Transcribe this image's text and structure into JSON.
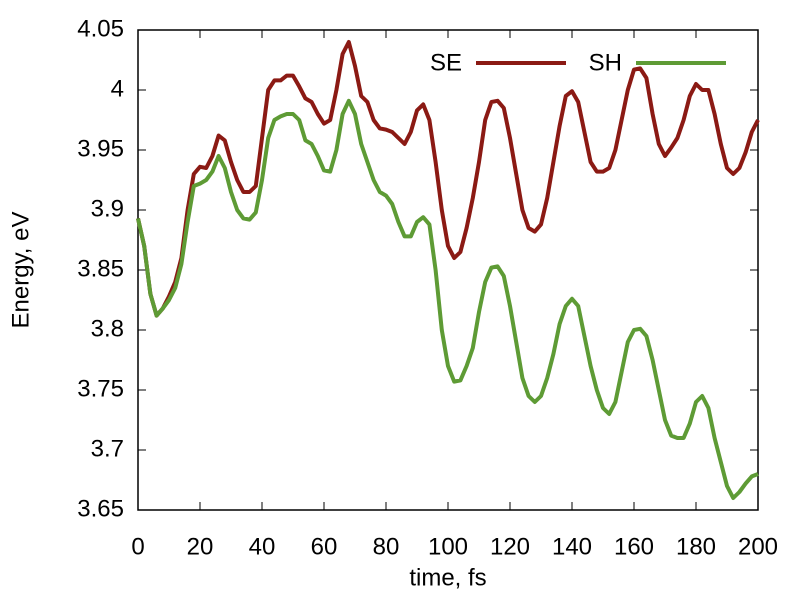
{
  "chart_data": {
    "type": "line",
    "xlabel": "time, fs",
    "ylabel": "Energy, eV",
    "x": [
      0,
      2,
      4,
      6,
      8,
      10,
      12,
      14,
      16,
      18,
      20,
      22,
      24,
      26,
      28,
      30,
      32,
      34,
      36,
      38,
      40,
      42,
      44,
      46,
      48,
      50,
      52,
      54,
      56,
      58,
      60,
      62,
      64,
      66,
      68,
      70,
      72,
      74,
      76,
      78,
      80,
      82,
      84,
      86,
      88,
      90,
      92,
      94,
      96,
      98,
      100,
      102,
      104,
      106,
      108,
      110,
      112,
      114,
      116,
      118,
      120,
      122,
      124,
      126,
      128,
      130,
      132,
      134,
      136,
      138,
      140,
      142,
      144,
      146,
      148,
      150,
      152,
      154,
      156,
      158,
      160,
      162,
      164,
      166,
      168,
      170,
      172,
      174,
      176,
      178,
      180,
      182,
      184,
      186,
      188,
      190,
      192,
      194,
      196,
      198,
      200
    ],
    "series": [
      {
        "name": "SE",
        "color": "#8b1a14",
        "values": [
          3.893,
          3.87,
          3.83,
          3.812,
          3.818,
          3.828,
          3.84,
          3.86,
          3.9,
          3.93,
          3.936,
          3.935,
          3.945,
          3.962,
          3.958,
          3.94,
          3.925,
          3.915,
          3.915,
          3.92,
          3.96,
          4.0,
          4.008,
          4.008,
          4.012,
          4.012,
          4.003,
          3.993,
          3.99,
          3.98,
          3.972,
          3.975,
          4.0,
          4.03,
          4.04,
          4.02,
          3.995,
          3.99,
          3.975,
          3.968,
          3.967,
          3.965,
          3.96,
          3.955,
          3.965,
          3.983,
          3.988,
          3.975,
          3.94,
          3.9,
          3.87,
          3.86,
          3.865,
          3.885,
          3.91,
          3.94,
          3.975,
          3.99,
          3.991,
          3.985,
          3.96,
          3.93,
          3.9,
          3.885,
          3.882,
          3.888,
          3.91,
          3.94,
          3.97,
          3.995,
          3.999,
          3.99,
          3.965,
          3.94,
          3.932,
          3.932,
          3.935,
          3.95,
          3.975,
          4.0,
          4.017,
          4.018,
          4.01,
          3.98,
          3.955,
          3.945,
          3.952,
          3.96,
          3.975,
          3.995,
          4.005,
          4.0,
          4.0,
          3.98,
          3.955,
          3.935,
          3.93,
          3.935,
          3.948,
          3.965,
          3.975
        ]
      },
      {
        "name": "SH",
        "color": "#5e9b35",
        "values": [
          3.893,
          3.87,
          3.83,
          3.812,
          3.818,
          3.825,
          3.835,
          3.855,
          3.89,
          3.92,
          3.922,
          3.925,
          3.932,
          3.945,
          3.935,
          3.915,
          3.9,
          3.893,
          3.892,
          3.898,
          3.925,
          3.96,
          3.975,
          3.978,
          3.98,
          3.98,
          3.975,
          3.958,
          3.955,
          3.945,
          3.933,
          3.932,
          3.95,
          3.98,
          3.991,
          3.98,
          3.955,
          3.94,
          3.925,
          3.915,
          3.912,
          3.905,
          3.89,
          3.878,
          3.878,
          3.89,
          3.894,
          3.888,
          3.85,
          3.8,
          3.77,
          3.757,
          3.758,
          3.77,
          3.785,
          3.815,
          3.84,
          3.852,
          3.853,
          3.845,
          3.82,
          3.79,
          3.76,
          3.745,
          3.74,
          3.745,
          3.76,
          3.78,
          3.805,
          3.82,
          3.826,
          3.82,
          3.795,
          3.77,
          3.75,
          3.735,
          3.73,
          3.74,
          3.765,
          3.79,
          3.8,
          3.801,
          3.795,
          3.775,
          3.75,
          3.725,
          3.712,
          3.71,
          3.71,
          3.722,
          3.74,
          3.745,
          3.735,
          3.71,
          3.69,
          3.67,
          3.66,
          3.665,
          3.672,
          3.678,
          3.68
        ]
      }
    ],
    "xlim": [
      0,
      200
    ],
    "xticks": [
      0,
      20,
      40,
      60,
      80,
      100,
      120,
      140,
      160,
      180,
      200
    ],
    "ylim": [
      3.65,
      4.05
    ],
    "yticks": [
      3.65,
      3.7,
      3.75,
      3.8,
      3.85,
      3.9,
      3.95,
      4,
      4.05
    ],
    "legend": "top-right",
    "grid": false
  }
}
